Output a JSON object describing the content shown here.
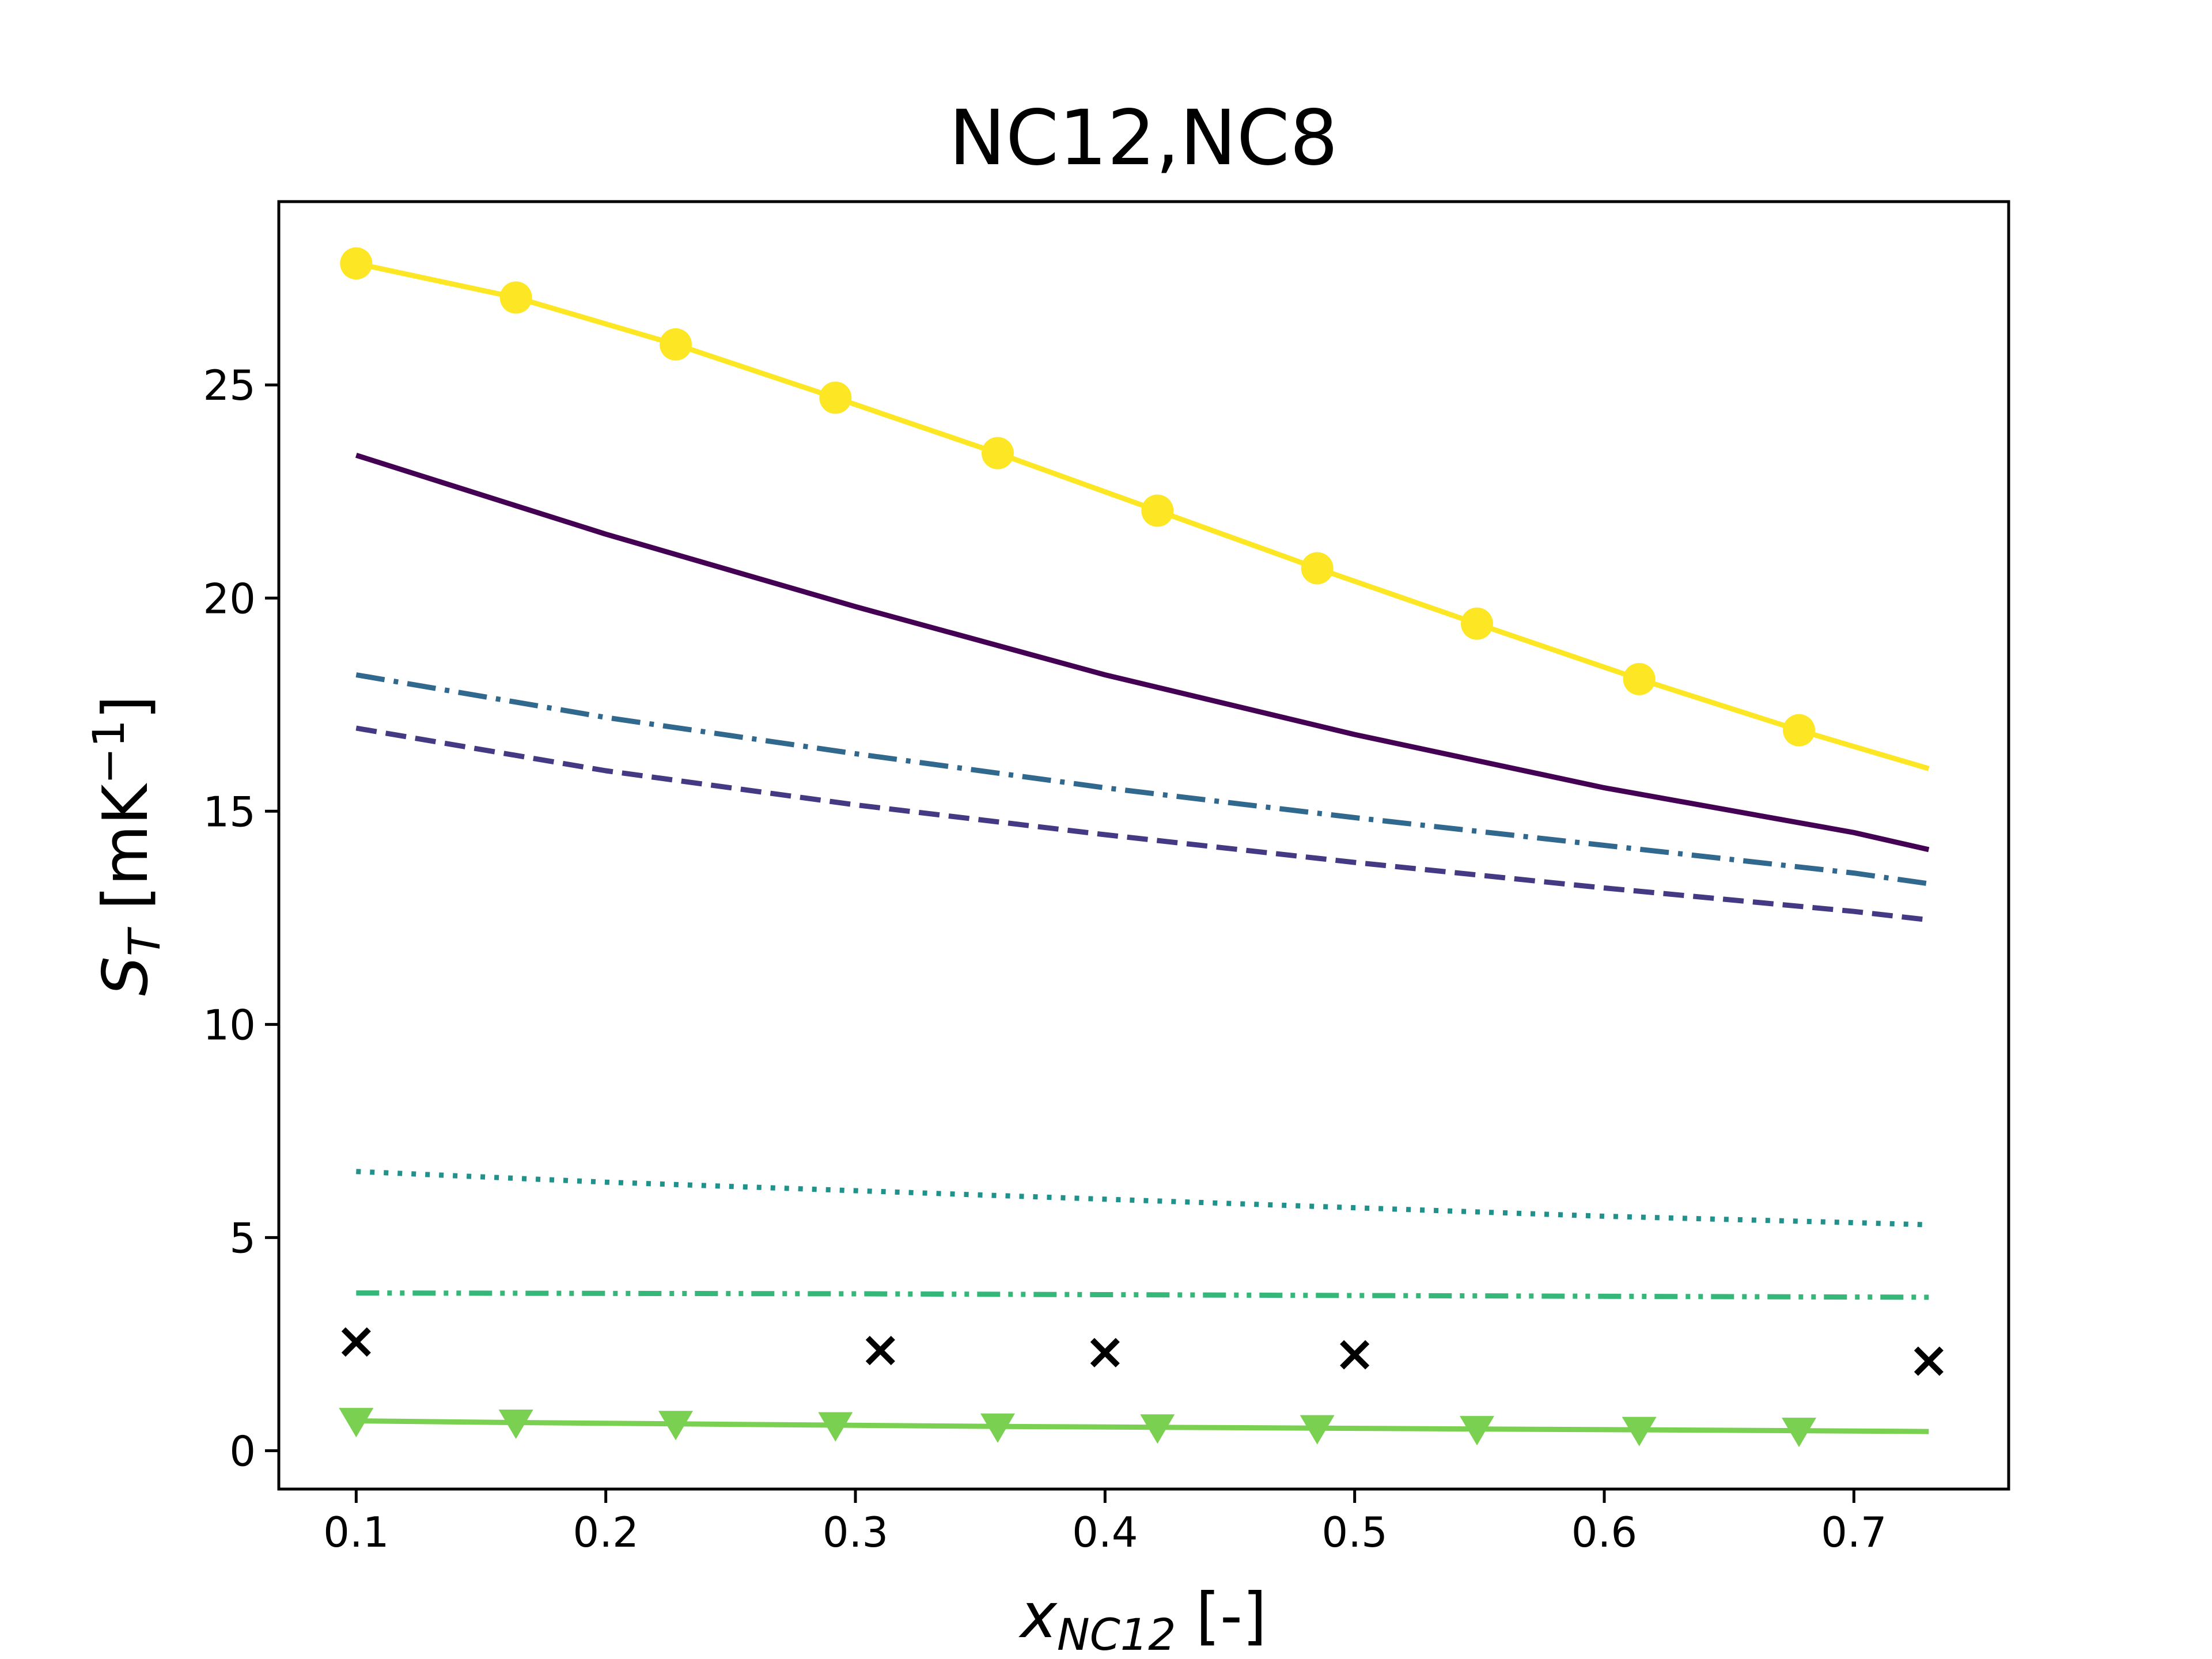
{
  "chart_data": {
    "type": "line",
    "title": "NC12,NC8",
    "xlabel": {
      "base": "x",
      "sub": "NC12",
      "suffix": " [-]"
    },
    "ylabel": {
      "base": "S",
      "sub": "T",
      "suffix": " [mK",
      "sup": "−1",
      "close": "]"
    },
    "xlim": [
      0.069,
      0.762
    ],
    "ylim": [
      -0.9,
      29.3
    ],
    "xticks": [
      0.1,
      0.2,
      0.3,
      0.4,
      0.5,
      0.6,
      0.7
    ],
    "xtick_labels": [
      "0.1",
      "0.2",
      "0.3",
      "0.4",
      "0.5",
      "0.6",
      "0.7"
    ],
    "yticks": [
      0,
      5,
      10,
      15,
      20,
      25
    ],
    "ytick_labels": [
      "0",
      "5",
      "10",
      "15",
      "20",
      "25"
    ],
    "grid": false,
    "series": [
      {
        "color": "#fde725",
        "dash": "solid",
        "marker": "circle",
        "x": [
          0.1,
          0.164,
          0.228,
          0.292,
          0.357,
          0.421,
          0.485,
          0.549,
          0.614,
          0.678,
          0.73
        ],
        "y": [
          27.85,
          27.05,
          25.95,
          24.7,
          23.4,
          22.05,
          20.7,
          19.4,
          18.1,
          16.9,
          16.0
        ],
        "marker_count": 10
      },
      {
        "color": "#440154",
        "dash": "solid",
        "marker": "none",
        "x": [
          0.1,
          0.2,
          0.3,
          0.4,
          0.5,
          0.6,
          0.7,
          0.73
        ],
        "y": [
          23.35,
          21.5,
          19.8,
          18.2,
          16.8,
          15.55,
          14.5,
          14.1
        ]
      },
      {
        "color": "#31688e",
        "dash": "dashdot",
        "marker": "none",
        "x": [
          0.1,
          0.2,
          0.3,
          0.4,
          0.5,
          0.6,
          0.7,
          0.73
        ],
        "y": [
          18.2,
          17.2,
          16.35,
          15.55,
          14.85,
          14.2,
          13.55,
          13.3
        ]
      },
      {
        "color": "#443983",
        "dash": "dashed",
        "marker": "none",
        "x": [
          0.1,
          0.2,
          0.3,
          0.4,
          0.5,
          0.6,
          0.7,
          0.73
        ],
        "y": [
          16.95,
          15.95,
          15.15,
          14.45,
          13.8,
          13.2,
          12.65,
          12.45
        ]
      },
      {
        "color": "#21918c",
        "dash": "dotted",
        "marker": "none",
        "x": [
          0.1,
          0.2,
          0.3,
          0.4,
          0.5,
          0.6,
          0.7,
          0.73
        ],
        "y": [
          6.55,
          6.3,
          6.1,
          5.9,
          5.7,
          5.5,
          5.35,
          5.3
        ]
      },
      {
        "color": "#35b779",
        "dash": "dashdotdot",
        "marker": "none",
        "x": [
          0.1,
          0.3,
          0.5,
          0.73
        ],
        "y": [
          3.7,
          3.68,
          3.64,
          3.6
        ]
      },
      {
        "color": "#7ad151",
        "dash": "solid",
        "marker": "triangle-down",
        "x": [
          0.1,
          0.164,
          0.228,
          0.292,
          0.357,
          0.421,
          0.485,
          0.549,
          0.614,
          0.678,
          0.73
        ],
        "y": [
          0.7,
          0.66,
          0.63,
          0.6,
          0.57,
          0.55,
          0.53,
          0.51,
          0.49,
          0.47,
          0.45
        ],
        "marker_count": 10
      },
      {
        "color": "#000000",
        "dash": "none",
        "marker": "x",
        "x": [
          0.1,
          0.31,
          0.4,
          0.5,
          0.73
        ],
        "y": [
          2.55,
          2.35,
          2.3,
          2.25,
          2.1
        ]
      }
    ]
  }
}
